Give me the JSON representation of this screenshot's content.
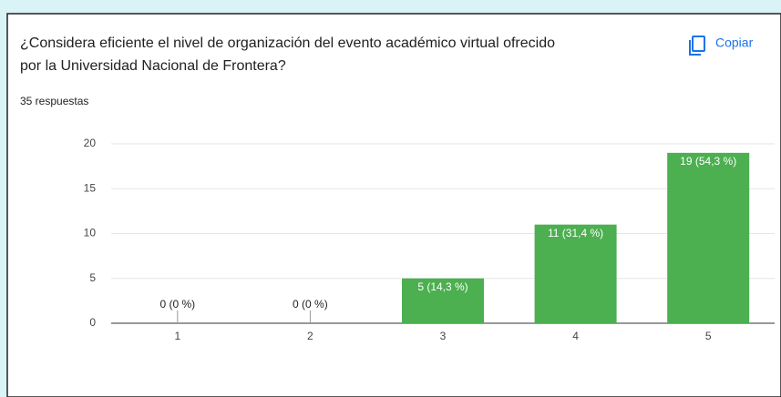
{
  "chart_data": {
    "type": "bar",
    "title": [
      "¿Considera eficiente el nivel de organización del evento académico virtual ofrecido",
      "por la Universidad Nacional de Frontera?"
    ],
    "subtitle": "35 respuestas",
    "copy_label": "Copiar",
    "categories": [
      "1",
      "2",
      "3",
      "4",
      "5"
    ],
    "values": [
      0,
      0,
      5,
      11,
      19
    ],
    "value_labels": [
      "0 (0 %)",
      "0 (0 %)",
      "5 (14,3 %)",
      "11 (31,4 %)",
      "19 (54,3 %)"
    ],
    "color": "#4caf50",
    "ylim": [
      0,
      20
    ],
    "yticks": [
      0,
      5,
      10,
      15,
      20
    ],
    "grid": true
  }
}
